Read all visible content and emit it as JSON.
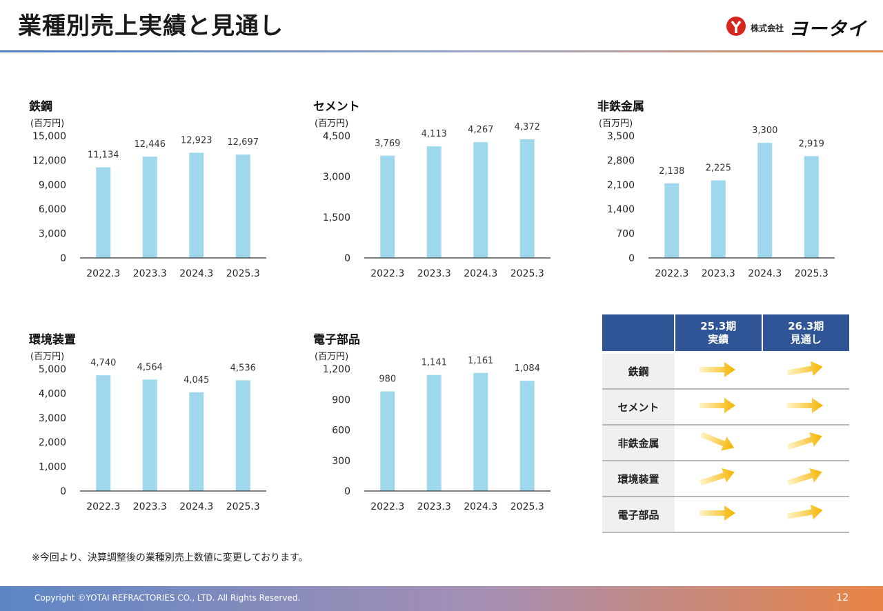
{
  "title": "業種別売上実績と見通し",
  "logo": {
    "small": "株式会社",
    "brand": "ヨータイ"
  },
  "colors": {
    "bar": "#9fd8ec",
    "header": "#2f5597",
    "arrow_start": "#fff4c8",
    "arrow_end": "#f5b400"
  },
  "chart_data": [
    {
      "type": "bar",
      "title": "鉄鋼",
      "unit": "(百万円)",
      "categories": [
        "2022.3",
        "2023.3",
        "2024.3",
        "2025.3"
      ],
      "values": [
        11134,
        12446,
        12923,
        12697
      ],
      "value_labels": [
        "11,134",
        "12,446",
        "12,923",
        "12,697"
      ],
      "yticks": [
        "0",
        "3,000",
        "6,000",
        "9,000",
        "12,000",
        "15,000"
      ],
      "ylim": [
        0,
        15000
      ]
    },
    {
      "type": "bar",
      "title": "セメント",
      "unit": "(百万円)",
      "categories": [
        "2022.3",
        "2023.3",
        "2024.3",
        "2025.3"
      ],
      "values": [
        3769,
        4113,
        4267,
        4372
      ],
      "value_labels": [
        "3,769",
        "4,113",
        "4,267",
        "4,372"
      ],
      "yticks": [
        "0",
        "1,500",
        "3,000",
        "4,500"
      ],
      "ylim": [
        0,
        4500
      ]
    },
    {
      "type": "bar",
      "title": "非鉄金属",
      "unit": "(百万円)",
      "categories": [
        "2022.3",
        "2023.3",
        "2024.3",
        "2025.3"
      ],
      "values": [
        2138,
        2225,
        3300,
        2919
      ],
      "value_labels": [
        "2,138",
        "2,225",
        "3,300",
        "2,919"
      ],
      "yticks": [
        "0",
        "700",
        "1,400",
        "2,100",
        "2,800",
        "3,500"
      ],
      "ylim": [
        0,
        3500
      ]
    },
    {
      "type": "bar",
      "title": "環境装置",
      "unit": "(百万円)",
      "categories": [
        "2022.3",
        "2023.3",
        "2024.3",
        "2025.3"
      ],
      "values": [
        4740,
        4564,
        4045,
        4536
      ],
      "value_labels": [
        "4,740",
        "4,564",
        "4,045",
        "4,536"
      ],
      "yticks": [
        "0",
        "1,000",
        "2,000",
        "3,000",
        "4,000",
        "5,000"
      ],
      "ylim": [
        0,
        5000
      ]
    },
    {
      "type": "bar",
      "title": "電子部品",
      "unit": "(百万円)",
      "categories": [
        "2022.3",
        "2023.3",
        "2024.3",
        "2025.3"
      ],
      "values": [
        980,
        1141,
        1161,
        1084
      ],
      "value_labels": [
        "980",
        "1,141",
        "1,161",
        "1,084"
      ],
      "yticks": [
        "0",
        "300",
        "600",
        "900",
        "1,200"
      ],
      "ylim": [
        0,
        1200
      ]
    }
  ],
  "forecast_table": {
    "headers": [
      "",
      "25.3期\n実績",
      "26.3期\n見通し"
    ],
    "rows": [
      {
        "label": "鉄鋼",
        "actual": "flat",
        "outlook": "up-slight"
      },
      {
        "label": "セメント",
        "actual": "flat",
        "outlook": "flat"
      },
      {
        "label": "非鉄金属",
        "actual": "down",
        "outlook": "up"
      },
      {
        "label": "環境装置",
        "actual": "up",
        "outlook": "up"
      },
      {
        "label": "電子部品",
        "actual": "flat",
        "outlook": "up-slight"
      }
    ]
  },
  "footnote": "※今回より、決算調整後の業種別売上数値に変更しております。",
  "footer": {
    "copyright": "Copyright ©YOTAI REFRACTORIES CO., LTD. All Rights Reserved.",
    "page": "12"
  }
}
